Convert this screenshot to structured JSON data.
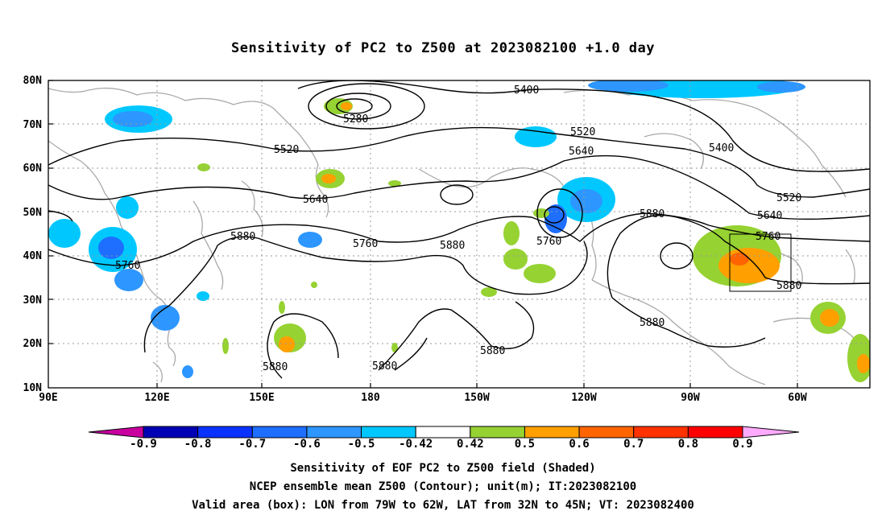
{
  "title": "Sensitivity of PC2 to Z500 at 2023082100 +1.0 day",
  "lat_labels": [
    "80N",
    "70N",
    "60N",
    "50N",
    "40N",
    "30N",
    "20N",
    "10N"
  ],
  "lon_labels": [
    "90E",
    "120E",
    "150E",
    "180",
    "150W",
    "120W",
    "90W",
    "60W"
  ],
  "contour_labels": [
    "5280",
    "5400",
    "5400",
    "5520",
    "5520",
    "5520",
    "5640",
    "5640",
    "5640",
    "5760",
    "5760",
    "5760",
    "5760",
    "5880",
    "5880",
    "5880",
    "5880",
    "5880",
    "5880",
    "5880",
    "5880"
  ],
  "colorbar": {
    "labels": [
      "-0.9",
      "-0.8",
      "-0.7",
      "-0.6",
      "-0.5",
      "-0.42",
      "0.42",
      "0.5",
      "0.6",
      "0.7",
      "0.8",
      "0.9"
    ],
    "colors": [
      "#0000b4",
      "#0a32ff",
      "#1e6eff",
      "#2d96ff",
      "#00c8ff",
      "#ffffff",
      "#96d232",
      "#ffa000",
      "#ff6400",
      "#ff3200",
      "#ff0000"
    ],
    "low_end_color": "#c800a0",
    "high_end_color": "#ffaaff"
  },
  "valid_box": {
    "lon_from": "79W",
    "lon_to": "62W",
    "lat_from": "32N",
    "lat_to": "45N"
  },
  "footer": {
    "line1": "Sensitivity of EOF PC2 to Z500 field (Shaded)",
    "line2": "NCEP ensemble mean Z500 (Contour); unit(m); IT:2023082100",
    "line3": "Valid area (box): LON from 79W to 62W, LAT from 32N to 45N; VT: 2023082400"
  }
}
